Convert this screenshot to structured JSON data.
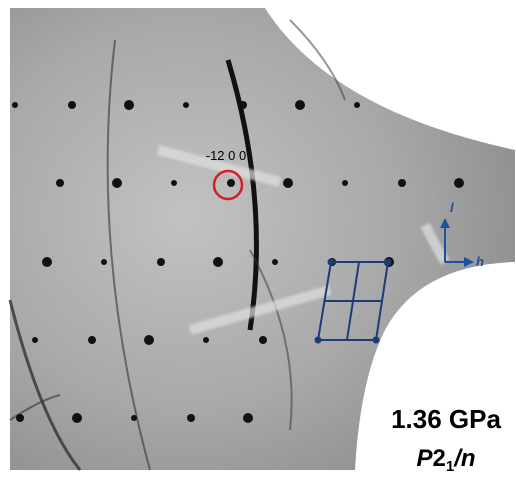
{
  "reflection_label": "-12 0 0",
  "axes": {
    "vertical": "l",
    "horizontal": "h"
  },
  "pressure": "1.36 GPa",
  "space_group": {
    "letter": "P",
    "number": "2",
    "subscript": "1",
    "glide": "/n"
  }
}
